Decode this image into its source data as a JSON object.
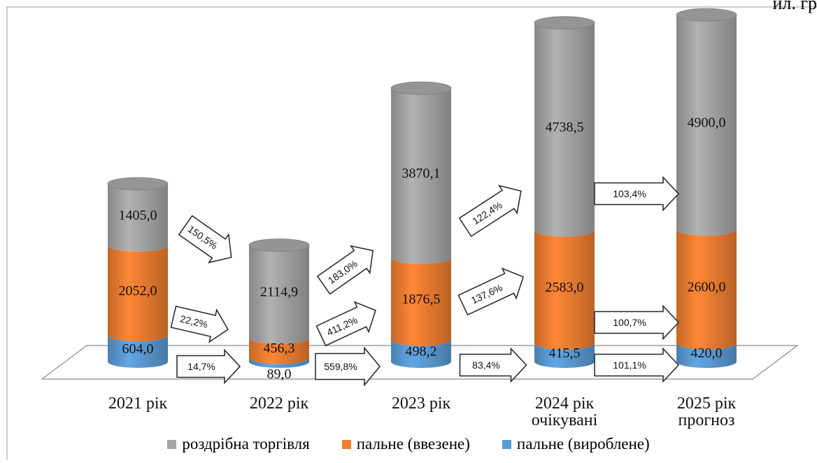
{
  "corner_text": "ил. гр",
  "colors": {
    "retail": "#a5a5a5",
    "imported": "#ed7d31",
    "produced": "#5b9bd5"
  },
  "chart_data": {
    "type": "bar",
    "stacked": true,
    "style": "3d-cylinder",
    "categories": [
      [
        "2021 рік"
      ],
      [
        "2022 рік"
      ],
      [
        "2023 рік"
      ],
      [
        "2024 рік",
        "очікувані"
      ],
      [
        "2025 рік",
        "прогноз"
      ]
    ],
    "series": [
      {
        "name": "пальне (вироблене)",
        "values": [
          604.0,
          89.0,
          498.2,
          415.5,
          420.0
        ],
        "labels": [
          "604,0",
          "89,0",
          "498,2",
          "415,5",
          "420,0"
        ]
      },
      {
        "name": "пальне (ввезене)",
        "values": [
          2052.0,
          456.3,
          1876.5,
          2583.0,
          2600.0
        ],
        "labels": [
          "2052,0",
          "456,3",
          "1876,5",
          "2583,0",
          "2600,0"
        ]
      },
      {
        "name": "роздрібна торгівля",
        "values": [
          1405.0,
          2114.9,
          3870.1,
          4738.5,
          4900.0
        ],
        "labels": [
          "1405,0",
          "2114,9",
          "3870,1",
          "4738,5",
          "4900,0"
        ]
      }
    ],
    "legend": {
      "placement": "bottom",
      "order": [
        "роздрібна торгівля",
        "пальне (ввезене)",
        "пальне (вироблене)"
      ]
    },
    "annotations": [
      {
        "text": "150,5%",
        "from": "2021 рік",
        "to": "2022 рік",
        "series": "роздрібна торгівля"
      },
      {
        "text": "22,2%",
        "from": "2021 рік",
        "to": "2022 рік",
        "series": "пальне (ввезене)"
      },
      {
        "text": "14,7%",
        "from": "2021 рік",
        "to": "2022 рік",
        "series": "пальне (вироблене)"
      },
      {
        "text": "183,0%",
        "from": "2022 рік",
        "to": "2023 рік",
        "series": "роздрібна торгівля"
      },
      {
        "text": "411,2%",
        "from": "2022 рік",
        "to": "2023 рік",
        "series": "пальне (ввезене)"
      },
      {
        "text": "559,8%",
        "from": "2022 рік",
        "to": "2023 рік",
        "series": "пальне (вироблене)"
      },
      {
        "text": "122,4%",
        "from": "2023 рік",
        "to": "2024 рік",
        "series": "роздрібна торгівля"
      },
      {
        "text": "137,6%",
        "from": "2023 рік",
        "to": "2024 рік",
        "series": "пальне (ввезене)"
      },
      {
        "text": "83,4%",
        "from": "2023 рік",
        "to": "2024 рік",
        "series": "пальне (вироблене)"
      },
      {
        "text": "103,4%",
        "from": "2024 рік",
        "to": "2025 рік",
        "series": "роздрібна торгівля"
      },
      {
        "text": "100,7%",
        "from": "2024 рік",
        "to": "2025 рік",
        "series": "пальне (ввезене)"
      },
      {
        "text": "101,1%",
        "from": "2024 рік",
        "to": "2025 рік",
        "series": "пальне (вироблене)"
      }
    ],
    "ylim": [
      0,
      8000
    ],
    "grid": false
  }
}
